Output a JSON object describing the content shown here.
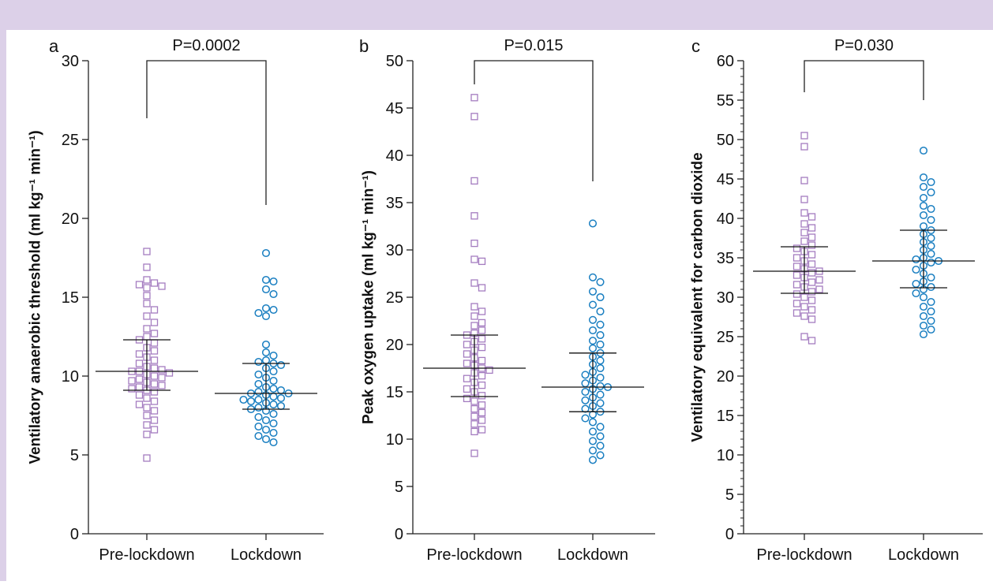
{
  "chart_data": [
    {
      "type": "dot",
      "panel_label": "a",
      "annotation": "P=0.0002",
      "ylabel": "Ventilatory anaerobic threshold (ml kg⁻¹ min⁻¹)",
      "categories": [
        "Pre-lockdown",
        "Lockdown"
      ],
      "ylim": [
        0,
        30
      ],
      "yticks": [
        0,
        5,
        10,
        15,
        20,
        25,
        30
      ],
      "minor_ticks": false,
      "groups": [
        {
          "color": "#a47cc0",
          "marker": "square",
          "median": 10.3,
          "q1": 9.1,
          "q3": 12.3,
          "values": [
            17.9,
            16.9,
            16.1,
            15.9,
            15.8,
            15.7,
            15.6,
            15.1,
            14.6,
            14.2,
            13.8,
            13.4,
            13.0,
            12.7,
            12.5,
            12.3,
            12.1,
            11.8,
            11.6,
            11.4,
            11.2,
            11.0,
            10.8,
            10.6,
            10.5,
            10.4,
            10.3,
            10.3,
            10.2,
            10.1,
            10.0,
            9.9,
            9.8,
            9.7,
            9.6,
            9.5,
            9.4,
            9.3,
            9.2,
            9.1,
            9.0,
            8.8,
            8.6,
            8.4,
            8.2,
            8.0,
            7.8,
            7.5,
            7.2,
            6.9,
            6.6,
            6.3,
            4.8
          ]
        },
        {
          "color": "#1a7fc1",
          "marker": "circle",
          "median": 8.9,
          "q1": 7.9,
          "q3": 10.8,
          "values": [
            17.8,
            16.1,
            16.0,
            15.5,
            15.2,
            14.3,
            14.2,
            14.0,
            13.8,
            12.0,
            11.5,
            11.3,
            11.0,
            10.9,
            10.8,
            10.7,
            10.5,
            10.3,
            10.1,
            9.9,
            9.7,
            9.5,
            9.3,
            9.2,
            9.1,
            9.0,
            8.9,
            8.9,
            8.8,
            8.7,
            8.6,
            8.5,
            8.5,
            8.4,
            8.3,
            8.2,
            8.1,
            8.0,
            7.9,
            7.8,
            7.6,
            7.4,
            7.2,
            7.0,
            6.8,
            6.6,
            6.4,
            6.2,
            6.0,
            5.8
          ]
        }
      ]
    },
    {
      "type": "dot",
      "panel_label": "b",
      "annotation": "P=0.015",
      "ylabel": "Peak oxygen uptake (ml kg⁻¹ min⁻¹)",
      "categories": [
        "Pre-lockdown",
        "Lockdown"
      ],
      "ylim": [
        0,
        50
      ],
      "yticks": [
        0,
        5,
        10,
        15,
        20,
        25,
        30,
        35,
        40,
        45,
        50
      ],
      "minor_ticks": false,
      "groups": [
        {
          "color": "#a47cc0",
          "marker": "square",
          "median": 17.5,
          "q1": 14.5,
          "q3": 21.0,
          "values": [
            46.1,
            44.1,
            37.3,
            33.6,
            30.7,
            29.0,
            28.8,
            26.5,
            26.0,
            24.0,
            23.5,
            23.0,
            22.3,
            22.0,
            21.5,
            21.2,
            21.0,
            20.6,
            20.3,
            20.0,
            19.7,
            19.4,
            19.0,
            18.6,
            18.3,
            18.0,
            17.8,
            17.5,
            17.3,
            17.0,
            16.7,
            16.4,
            16.0,
            15.7,
            15.3,
            15.0,
            14.6,
            14.3,
            14.0,
            13.6,
            13.2,
            12.8,
            12.4,
            12.0,
            11.6,
            11.0,
            10.8,
            8.5
          ]
        },
        {
          "color": "#1a7fc1",
          "marker": "circle",
          "median": 15.5,
          "q1": 12.9,
          "q3": 19.1,
          "values": [
            32.8,
            27.1,
            26.6,
            25.6,
            25.0,
            24.2,
            23.5,
            22.6,
            22.1,
            21.5,
            21.0,
            20.4,
            20.0,
            19.6,
            19.1,
            18.7,
            18.3,
            17.9,
            17.5,
            17.1,
            16.8,
            16.5,
            16.2,
            15.9,
            15.6,
            15.5,
            15.3,
            15.0,
            14.7,
            14.4,
            14.1,
            13.8,
            13.5,
            13.2,
            12.9,
            12.6,
            12.2,
            11.8,
            11.3,
            10.8,
            10.3,
            9.8,
            9.3,
            8.8,
            8.3,
            7.8
          ]
        }
      ]
    },
    {
      "type": "dot",
      "panel_label": "c",
      "annotation": "P=0.030",
      "ylabel": "Ventilatory equivalent for carbon dioxide",
      "categories": [
        "Pre-lockdown",
        "Lockdown"
      ],
      "ylim": [
        0,
        60
      ],
      "yticks": [
        0,
        5,
        10,
        15,
        20,
        25,
        30,
        35,
        40,
        45,
        50,
        55,
        60
      ],
      "minor_ticks": true,
      "groups": [
        {
          "color": "#a47cc0",
          "marker": "square",
          "median": 33.3,
          "q1": 30.5,
          "q3": 36.4,
          "values": [
            50.5,
            49.1,
            44.8,
            42.4,
            40.7,
            40.2,
            39.3,
            38.8,
            38.2,
            37.6,
            37.1,
            36.6,
            36.2,
            35.8,
            35.4,
            35.0,
            34.6,
            34.2,
            33.9,
            33.6,
            33.3,
            33.1,
            32.8,
            32.5,
            32.2,
            31.9,
            31.6,
            31.3,
            31.0,
            30.7,
            30.4,
            30.0,
            29.6,
            29.2,
            28.8,
            28.4,
            28.0,
            27.6,
            27.2,
            25.0,
            24.5
          ]
        },
        {
          "color": "#1a7fc1",
          "marker": "circle",
          "median": 34.6,
          "q1": 31.2,
          "q3": 38.5,
          "values": [
            48.6,
            45.2,
            44.6,
            44.0,
            43.3,
            42.6,
            41.6,
            41.2,
            40.4,
            39.8,
            39.0,
            38.5,
            38.0,
            37.5,
            37.0,
            36.5,
            36.0,
            35.5,
            35.0,
            34.8,
            34.6,
            34.4,
            34.0,
            33.5,
            33.0,
            32.5,
            32.0,
            31.7,
            31.3,
            31.0,
            30.5,
            30.0,
            29.4,
            28.8,
            28.2,
            27.6,
            27.0,
            26.4,
            25.9,
            25.3
          ]
        }
      ]
    }
  ]
}
